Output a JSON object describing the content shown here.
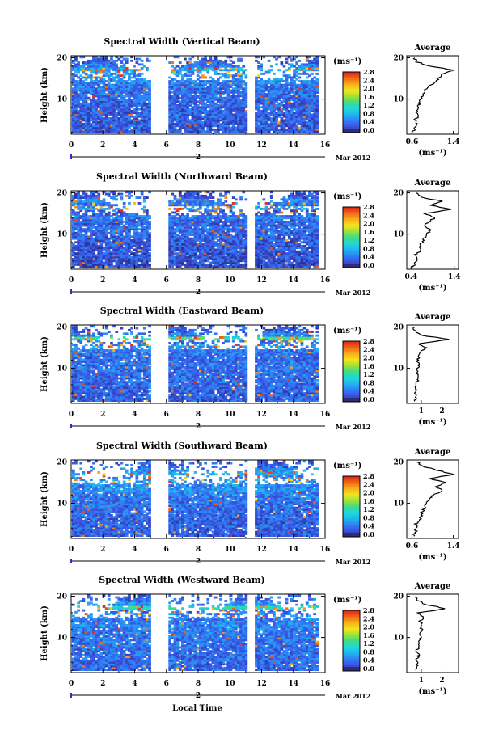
{
  "figure": {
    "x_label": "Local Time",
    "date_label": "Mar 2012",
    "day_marker": "2",
    "average_title": "Average",
    "y_label": "Height (km)",
    "colorbar_unit": "(ms⁻¹)",
    "x_ticks": [
      "0",
      "2",
      "4",
      "6",
      "8",
      "10",
      "12",
      "14",
      "16"
    ],
    "y_ticks": [
      "10",
      "20"
    ],
    "colorbar_ticks": [
      "0.0",
      "0.4",
      "0.8",
      "1.2",
      "1.6",
      "2.0",
      "2.4",
      "2.8"
    ],
    "colorbar_colors": [
      "#2a2f8a",
      "#3b4fe0",
      "#2f7ff5",
      "#21b3f0",
      "#21d7d9",
      "#3cdc8c",
      "#9de037",
      "#f2e71c",
      "#f8b01c",
      "#f26a14",
      "#e0241c"
    ]
  },
  "chart_data": [
    {
      "type": "heatmap",
      "title": "Spectral Width (Vertical Beam)",
      "xlabel": "Local Time",
      "ylabel": "Height (km)",
      "xlim": [
        0,
        16
      ],
      "ylim": [
        1.5,
        20.5
      ],
      "clim": [
        0.0,
        2.8
      ],
      "units": "ms⁻¹",
      "data_gaps_hours": [
        [
          5.0,
          6.1
        ],
        [
          11.0,
          11.5
        ]
      ],
      "average_profile": {
        "title": "Average",
        "xlabel": "(ms⁻¹)",
        "xlim": [
          0.5,
          1.5
        ],
        "x_ticks": [
          "0.6",
          "1.4"
        ],
        "height_km": [
          2,
          3,
          4,
          5,
          6,
          7,
          8,
          9,
          10,
          11,
          12,
          13,
          14,
          15,
          16,
          17,
          18,
          19,
          20
        ],
        "width_ms": [
          0.62,
          0.65,
          0.68,
          0.66,
          0.72,
          0.7,
          0.74,
          0.73,
          0.78,
          0.8,
          0.85,
          0.9,
          1.05,
          1.1,
          1.2,
          1.4,
          0.95,
          0.7,
          0.65
        ]
      }
    },
    {
      "type": "heatmap",
      "title": "Spectral Width (Northward Beam)",
      "xlabel": "Local Time",
      "ylabel": "Height (km)",
      "xlim": [
        0,
        16
      ],
      "ylim": [
        1.5,
        20.5
      ],
      "clim": [
        0.0,
        2.8
      ],
      "units": "ms⁻¹",
      "data_gaps_hours": [
        [
          5.0,
          6.1
        ],
        [
          11.0,
          11.5
        ]
      ],
      "average_profile": {
        "title": "Average",
        "xlabel": "(ms⁻¹)",
        "xlim": [
          0.3,
          1.5
        ],
        "x_ticks": [
          "0.4",
          "1.4"
        ],
        "height_km": [
          2,
          3,
          4,
          5,
          6,
          7,
          8,
          9,
          10,
          11,
          12,
          13,
          14,
          15,
          16,
          17,
          18,
          19,
          20
        ],
        "width_ms": [
          0.45,
          0.48,
          0.55,
          0.5,
          0.62,
          0.58,
          0.66,
          0.7,
          0.75,
          0.85,
          0.72,
          0.8,
          0.95,
          0.7,
          1.35,
          0.85,
          1.1,
          0.6,
          0.55
        ]
      }
    },
    {
      "type": "heatmap",
      "title": "Spectral Width (Eastward Beam)",
      "xlabel": "Local Time",
      "ylabel": "Height (km)",
      "xlim": [
        0,
        16
      ],
      "ylim": [
        1.5,
        20.5
      ],
      "clim": [
        0.0,
        2.8
      ],
      "units": "ms⁻¹",
      "data_gaps_hours": [
        [
          5.0,
          6.1
        ],
        [
          11.0,
          11.5
        ]
      ],
      "average_profile": {
        "title": "Average",
        "xlabel": "(ms⁻¹)",
        "xlim": [
          0.3,
          2.8
        ],
        "x_ticks": [
          "1",
          "2"
        ],
        "height_km": [
          2,
          3,
          4,
          5,
          6,
          7,
          8,
          9,
          10,
          11,
          12,
          13,
          14,
          15,
          16,
          17,
          18,
          19,
          20
        ],
        "width_ms": [
          0.7,
          0.72,
          0.68,
          0.75,
          0.74,
          0.8,
          0.78,
          0.82,
          0.85,
          0.88,
          0.8,
          0.9,
          0.95,
          1.2,
          0.85,
          2.4,
          1.0,
          0.7,
          0.65
        ]
      }
    },
    {
      "type": "heatmap",
      "title": "Spectral Width (Southward Beam)",
      "xlabel": "Local Time",
      "ylabel": "Height (km)",
      "xlim": [
        0,
        16
      ],
      "ylim": [
        1.5,
        20.5
      ],
      "clim": [
        0.0,
        2.8
      ],
      "units": "ms⁻¹",
      "data_gaps_hours": [
        [
          5.0,
          6.1
        ],
        [
          11.0,
          11.5
        ]
      ],
      "average_profile": {
        "title": "Average",
        "xlabel": "(ms⁻¹)",
        "xlim": [
          0.5,
          1.5
        ],
        "x_ticks": [
          "0.6",
          "1.4"
        ],
        "height_km": [
          2,
          3,
          4,
          5,
          6,
          7,
          8,
          9,
          10,
          11,
          12,
          13,
          14,
          15,
          16,
          17,
          18,
          19,
          20
        ],
        "width_ms": [
          0.62,
          0.66,
          0.7,
          0.68,
          0.74,
          0.78,
          0.8,
          0.85,
          0.88,
          0.92,
          1.0,
          1.2,
          1.05,
          1.25,
          0.95,
          1.4,
          1.1,
          0.8,
          0.72
        ]
      }
    },
    {
      "type": "heatmap",
      "title": "Spectral Width (Westward Beam)",
      "xlabel": "Local Time",
      "ylabel": "Height (km)",
      "xlim": [
        0,
        16
      ],
      "ylim": [
        1.5,
        20.5
      ],
      "clim": [
        0.0,
        2.8
      ],
      "units": "ms⁻¹",
      "data_gaps_hours": [
        [
          5.0,
          6.1
        ],
        [
          11.0,
          11.5
        ]
      ],
      "average_profile": {
        "title": "Average",
        "xlabel": "(ms⁻¹)",
        "xlim": [
          0.3,
          2.8
        ],
        "x_ticks": [
          "1",
          "2"
        ],
        "height_km": [
          2,
          3,
          4,
          5,
          6,
          7,
          8,
          9,
          10,
          11,
          12,
          13,
          14,
          15,
          16,
          17,
          18,
          19,
          20
        ],
        "width_ms": [
          0.75,
          0.8,
          0.78,
          0.82,
          0.85,
          0.8,
          0.88,
          0.9,
          0.95,
          0.92,
          1.0,
          1.05,
          0.95,
          1.1,
          0.9,
          2.2,
          1.2,
          0.8,
          0.75
        ]
      }
    }
  ]
}
